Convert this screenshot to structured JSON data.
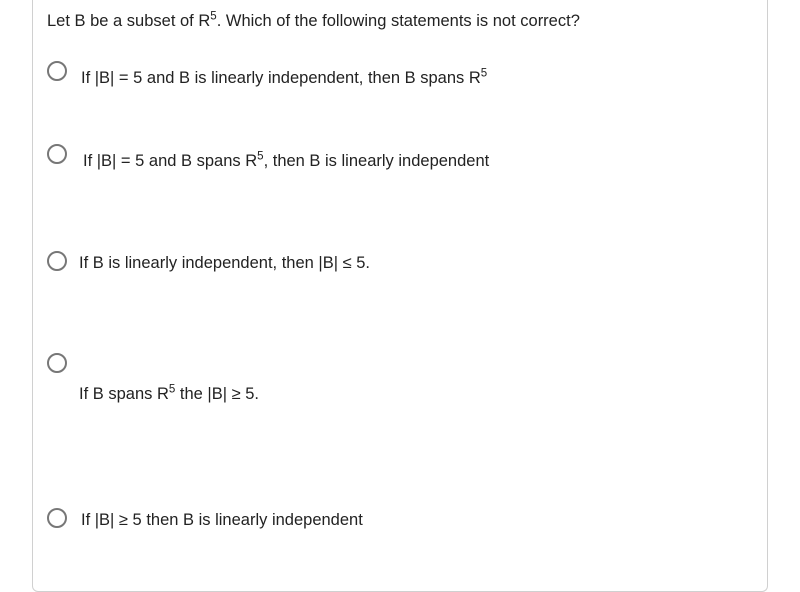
{
  "question": {
    "prefix": "Let B be a subset of R",
    "sup1": "5",
    "suffix": ". Which of the following statements is not correct?"
  },
  "options": {
    "o1": {
      "p1": "If |B| = 5 and B is linearly independent, then B spans R",
      "s1": "5"
    },
    "o2": {
      "p1": "If |B| = 5 and B spans R",
      "s1": "5",
      "p2": ", then B is linearly independent"
    },
    "o3": {
      "p1": "If B is linearly independent, then |B| ≤ 5."
    },
    "o4": {
      "p1": "If B spans R",
      "s1": "5",
      "p2": " the |B| ≥ 5."
    },
    "o5": {
      "p1": "If |B| ≥ 5 then B is linearly independent"
    }
  },
  "style": {
    "radio_border": "#777777",
    "card_border": "#d0d0d0",
    "text_color": "#222222",
    "bg": "#ffffff",
    "font_size_pt": 12
  }
}
